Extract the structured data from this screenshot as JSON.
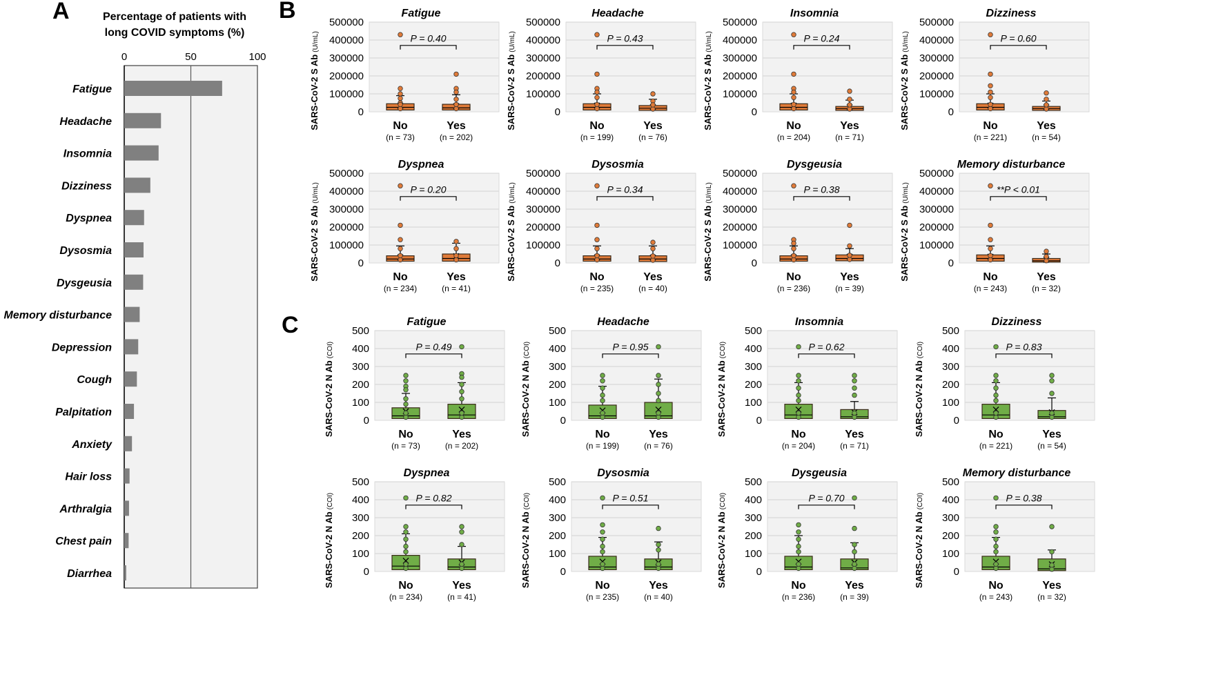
{
  "chart_data": [
    {
      "panel": "A",
      "type": "bar",
      "orientation": "horizontal",
      "title_lines": [
        "Percentage of patients with",
        "long COVID symptoms (%)"
      ],
      "xlim": [
        0,
        100
      ],
      "xticks": [
        "0",
        "50",
        "100"
      ],
      "grid": "vertical at 50",
      "bar_color": "#808080",
      "categories": [
        "Fatigue",
        "Headache",
        "Insomnia",
        "Dizziness",
        "Dyspnea",
        "Dysosmia",
        "Dysgeusia",
        "Memory disturbance",
        "Depression",
        "Cough",
        "Palpitation",
        "Anxiety",
        "Hair loss",
        "Arthralgia",
        "Chest pain",
        "Diarrhea"
      ],
      "values": [
        73.5,
        27.6,
        25.8,
        19.6,
        14.9,
        14.5,
        14.2,
        11.6,
        10.5,
        9.5,
        7.3,
        5.8,
        4.0,
        3.6,
        3.3,
        1.5
      ]
    },
    {
      "panel": "B",
      "type": "box",
      "ylabel": "SARS-CoV-2 S Ab",
      "yunit": "(U/mL)",
      "ylim": [
        0,
        500000
      ],
      "yticks": [
        "0",
        "100000",
        "200000",
        "300000",
        "400000",
        "500000"
      ],
      "color": "#E07B39",
      "plots": [
        {
          "title": "Fatigue",
          "p": "P = 0.40",
          "groups": [
            {
              "label": "No",
              "n": "(n = 73)",
              "q1": 10000,
              "med": 25000,
              "q3": 45000,
              "wh": 90000,
              "mean": 32000,
              "pts": [
                430000,
                130000,
                100000,
                75000,
                50000
              ]
            },
            {
              "label": "Yes",
              "n": "(n = 202)",
              "q1": 10000,
              "med": 22000,
              "q3": 42000,
              "wh": 95000,
              "mean": 32000,
              "pts": [
                210000,
                130000,
                110000,
                70000
              ]
            }
          ]
        },
        {
          "title": "Headache",
          "p": "P = 0.43",
          "groups": [
            {
              "label": "No",
              "n": "(n = 199)",
              "q1": 10000,
              "med": 25000,
              "q3": 45000,
              "wh": 100000,
              "mean": 35000,
              "pts": [
                430000,
                210000,
                130000,
                110000,
                80000
              ]
            },
            {
              "label": "Yes",
              "n": "(n = 76)",
              "q1": 8000,
              "med": 20000,
              "q3": 35000,
              "wh": 70000,
              "mean": 27000,
              "pts": [
                100000,
                60000
              ]
            }
          ]
        },
        {
          "title": "Insomnia",
          "p": "P = 0.24",
          "groups": [
            {
              "label": "No",
              "n": "(n = 204)",
              "q1": 10000,
              "med": 25000,
              "q3": 45000,
              "wh": 100000,
              "mean": 35000,
              "pts": [
                430000,
                210000,
                130000,
                110000,
                80000
              ]
            },
            {
              "label": "Yes",
              "n": "(n = 71)",
              "q1": 8000,
              "med": 18000,
              "q3": 30000,
              "wh": 65000,
              "mean": 25000,
              "pts": [
                115000,
                70000
              ]
            }
          ]
        },
        {
          "title": "Dizziness",
          "p": "P = 0.60",
          "groups": [
            {
              "label": "No",
              "n": "(n = 221)",
              "q1": 10000,
              "med": 25000,
              "q3": 45000,
              "wh": 100000,
              "mean": 35000,
              "pts": [
                430000,
                210000,
                145000,
                110000,
                80000
              ]
            },
            {
              "label": "Yes",
              "n": "(n = 54)",
              "q1": 8000,
              "med": 18000,
              "q3": 30000,
              "wh": 60000,
              "mean": 25000,
              "pts": [
                105000,
                70000
              ]
            }
          ]
        },
        {
          "title": "Dyspnea",
          "p": "P = 0.20",
          "groups": [
            {
              "label": "No",
              "n": "(n = 234)",
              "q1": 10000,
              "med": 22000,
              "q3": 40000,
              "wh": 95000,
              "mean": 32000,
              "pts": [
                430000,
                210000,
                130000,
                80000
              ]
            },
            {
              "label": "Yes",
              "n": "(n = 41)",
              "q1": 10000,
              "med": 25000,
              "q3": 50000,
              "wh": 110000,
              "mean": 38000,
              "pts": [
                120000,
                80000
              ]
            }
          ]
        },
        {
          "title": "Dysosmia",
          "p": "P = 0.34",
          "groups": [
            {
              "label": "No",
              "n": "(n = 235)",
              "q1": 10000,
              "med": 22000,
              "q3": 40000,
              "wh": 95000,
              "mean": 32000,
              "pts": [
                430000,
                210000,
                130000,
                80000
              ]
            },
            {
              "label": "Yes",
              "n": "(n = 40)",
              "q1": 8000,
              "med": 22000,
              "q3": 40000,
              "wh": 95000,
              "mean": 30000,
              "pts": [
                115000,
                80000
              ]
            }
          ]
        },
        {
          "title": "Dysgeusia",
          "p": "P = 0.38",
          "groups": [
            {
              "label": "No",
              "n": "(n = 236)",
              "q1": 10000,
              "med": 22000,
              "q3": 40000,
              "wh": 95000,
              "mean": 32000,
              "pts": [
                430000,
                130000,
                110000,
                80000
              ]
            },
            {
              "label": "Yes",
              "n": "(n = 39)",
              "q1": 12000,
              "med": 25000,
              "q3": 45000,
              "wh": 80000,
              "mean": 35000,
              "pts": [
                210000,
                95000
              ]
            }
          ]
        },
        {
          "title": "Memory disturbance",
          "p": "**P < 0.01",
          "groups": [
            {
              "label": "No",
              "n": "(n = 243)",
              "q1": 10000,
              "med": 25000,
              "q3": 45000,
              "wh": 95000,
              "mean": 35000,
              "pts": [
                430000,
                210000,
                130000,
                80000
              ]
            },
            {
              "label": "Yes",
              "n": "(n = 32)",
              "q1": 5000,
              "med": 12000,
              "q3": 25000,
              "wh": 50000,
              "mean": 18000,
              "pts": [
                65000
              ]
            }
          ]
        }
      ]
    },
    {
      "panel": "C",
      "type": "box",
      "ylabel": "SARS-CoV-2 N Ab",
      "yunit": "(COI)",
      "ylim": [
        0,
        500
      ],
      "yticks": [
        "0",
        "100",
        "200",
        "300",
        "400",
        "500"
      ],
      "color": "#70AD47",
      "plots": [
        {
          "title": "Fatigue",
          "p": "P = 0.49",
          "groups": [
            {
              "label": "No",
              "n": "(n = 73)",
              "q1": 10,
              "med": 25,
              "q3": 70,
              "wh": 150,
              "mean": 50,
              "pts": [
                250,
                220,
                190,
                170,
                120,
                90
              ]
            },
            {
              "label": "Yes",
              "n": "(n = 202)",
              "q1": 10,
              "med": 30,
              "q3": 90,
              "wh": 210,
              "mean": 60,
              "pts": [
                410,
                260,
                240,
                200,
                160,
                120
              ]
            }
          ]
        },
        {
          "title": "Headache",
          "p": "P = 0.95",
          "groups": [
            {
              "label": "No",
              "n": "(n = 199)",
              "q1": 10,
              "med": 25,
              "q3": 85,
              "wh": 190,
              "mean": 55,
              "pts": [
                250,
                220,
                180,
                140,
                110
              ]
            },
            {
              "label": "Yes",
              "n": "(n = 76)",
              "q1": 10,
              "med": 25,
              "q3": 100,
              "wh": 230,
              "mean": 60,
              "pts": [
                410,
                250,
                200,
                150,
                110
              ]
            }
          ]
        },
        {
          "title": "Insomnia",
          "p": "P = 0.62",
          "groups": [
            {
              "label": "No",
              "n": "(n = 204)",
              "q1": 10,
              "med": 30,
              "q3": 90,
              "wh": 210,
              "mean": 60,
              "pts": [
                410,
                250,
                220,
                180,
                140,
                110
              ]
            },
            {
              "label": "Yes",
              "n": "(n = 71)",
              "q1": 10,
              "med": 20,
              "q3": 60,
              "wh": 105,
              "mean": 45,
              "pts": [
                250,
                220,
                180,
                140
              ]
            }
          ]
        },
        {
          "title": "Dizziness",
          "p": "P = 0.83",
          "groups": [
            {
              "label": "No",
              "n": "(n = 221)",
              "q1": 10,
              "med": 30,
              "q3": 90,
              "wh": 210,
              "mean": 60,
              "pts": [
                410,
                250,
                220,
                180,
                140,
                110
              ]
            },
            {
              "label": "Yes",
              "n": "(n = 54)",
              "q1": 10,
              "med": 20,
              "q3": 55,
              "wh": 125,
              "mean": 45,
              "pts": [
                250,
                220,
                150
              ]
            }
          ]
        },
        {
          "title": "Dyspnea",
          "p": "P = 0.82",
          "groups": [
            {
              "label": "No",
              "n": "(n = 234)",
              "q1": 10,
              "med": 30,
              "q3": 90,
              "wh": 210,
              "mean": 60,
              "pts": [
                410,
                250,
                220,
                180,
                140,
                110
              ]
            },
            {
              "label": "Yes",
              "n": "(n = 41)",
              "q1": 10,
              "med": 25,
              "q3": 70,
              "wh": 140,
              "mean": 50,
              "pts": [
                250,
                220,
                150
              ]
            }
          ]
        },
        {
          "title": "Dysosmia",
          "p": "P = 0.51",
          "groups": [
            {
              "label": "No",
              "n": "(n = 235)",
              "q1": 10,
              "med": 25,
              "q3": 85,
              "wh": 190,
              "mean": 55,
              "pts": [
                410,
                260,
                220,
                180,
                140,
                110
              ]
            },
            {
              "label": "Yes",
              "n": "(n = 40)",
              "q1": 10,
              "med": 25,
              "q3": 70,
              "wh": 165,
              "mean": 50,
              "pts": [
                240,
                150,
                120
              ]
            }
          ]
        },
        {
          "title": "Dysgeusia",
          "p": "P = 0.70",
          "groups": [
            {
              "label": "No",
              "n": "(n = 236)",
              "q1": 10,
              "med": 25,
              "q3": 85,
              "wh": 200,
              "mean": 55,
              "pts": [
                260,
                220,
                180,
                140,
                110
              ]
            },
            {
              "label": "Yes",
              "n": "(n = 39)",
              "q1": 10,
              "med": 20,
              "q3": 70,
              "wh": 160,
              "mean": 50,
              "pts": [
                410,
                240,
                150,
                110
              ]
            }
          ]
        },
        {
          "title": "Memory disturbance",
          "p": "P = 0.38",
          "groups": [
            {
              "label": "No",
              "n": "(n = 243)",
              "q1": 10,
              "med": 25,
              "q3": 85,
              "wh": 190,
              "mean": 55,
              "pts": [
                410,
                250,
                220,
                180,
                140,
                110
              ]
            },
            {
              "label": "Yes",
              "n": "(n = 32)",
              "q1": 5,
              "med": 15,
              "q3": 70,
              "wh": 120,
              "mean": 40,
              "pts": [
                250,
                110
              ]
            }
          ]
        }
      ]
    }
  ]
}
